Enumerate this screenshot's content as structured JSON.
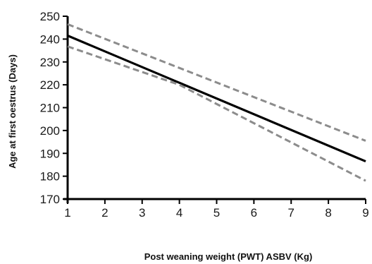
{
  "chart_data": {
    "type": "line",
    "title": "",
    "xlabel": "Post weaning weight (PWT) ASBV (Kg)",
    "ylabel": "Age at first oestrus (Days)",
    "xlim": [
      1,
      9
    ],
    "ylim": [
      170,
      250
    ],
    "x_ticks": [
      "1",
      "2",
      "3",
      "4",
      "5",
      "6",
      "7",
      "8",
      "9"
    ],
    "y_ticks": [
      "170",
      "180",
      "190",
      "200",
      "210",
      "220",
      "230",
      "240",
      "250"
    ],
    "grid": false,
    "legend": "none",
    "series": [
      {
        "role": "fit",
        "style": "solid",
        "color": "#000000",
        "x": [
          1,
          9
        ],
        "y": [
          241.5,
          186.5
        ]
      },
      {
        "role": "upper-bound",
        "style": "dashed",
        "color": "#8c8c8c",
        "x": [
          1,
          9
        ],
        "y": [
          246.5,
          195.5
        ]
      },
      {
        "role": "lower-bound",
        "style": "dashed",
        "color": "#8c8c8c",
        "x": [
          1,
          4,
          9
        ],
        "y": [
          236.8,
          220.0,
          178.0
        ]
      }
    ]
  }
}
